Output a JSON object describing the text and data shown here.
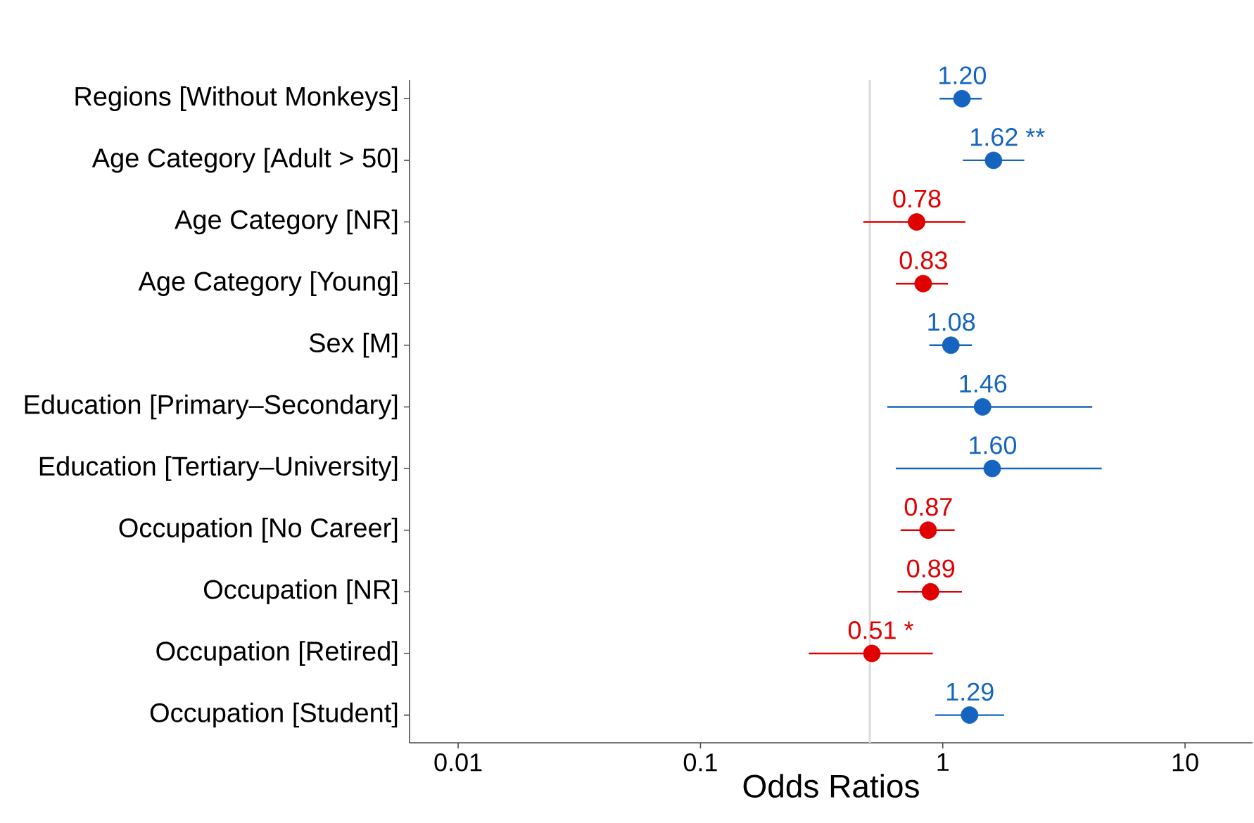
{
  "chart_data": {
    "type": "scatter",
    "orientation": "horizontal",
    "xlabel": "Odds Ratios",
    "log": "x",
    "marker": "circle",
    "xlim": [
      0.0063,
      19
    ],
    "xticks": [
      0.01,
      0.1,
      1,
      10
    ],
    "categories": [
      "Regions [Without Monkeys]",
      "Age Category [Adult > 50]",
      "Age Category [NR]",
      "Age Category [Young]",
      "Sex [M]",
      "Education [Primary–Secondary]",
      "Education [Tertiary–University]",
      "Occupation [No Career]",
      "Occupation [NR]",
      "Occupation [Retired]",
      "Occupation [Student]"
    ],
    "values": [
      1.2,
      1.62,
      0.78,
      0.83,
      1.08,
      1.46,
      1.6,
      0.87,
      0.89,
      0.51,
      1.29
    ],
    "value_labels": [
      "1.20",
      "1.62 **",
      "0.78",
      "0.83",
      "1.08",
      "1.46",
      "1.60",
      "0.87",
      "0.89",
      "0.51 *",
      "1.29"
    ],
    "errors": [
      [
        0.97,
        1.45
      ],
      [
        1.21,
        2.17
      ],
      [
        0.47,
        1.24
      ],
      [
        0.64,
        1.05
      ],
      [
        0.88,
        1.32
      ],
      [
        0.59,
        4.14
      ],
      [
        0.64,
        4.53
      ],
      [
        0.67,
        1.12
      ],
      [
        0.65,
        1.2
      ],
      [
        0.28,
        0.91
      ],
      [
        0.93,
        1.79
      ]
    ],
    "colors": [
      "#1565c0",
      "#1565c0",
      "#e00000",
      "#e00000",
      "#1565c0",
      "#1565c0",
      "#1565c0",
      "#e00000",
      "#e00000",
      "#e00000",
      "#1565c0"
    ],
    "ref_lines": [
      {
        "axis": "x",
        "value": 0.5,
        "color": "#d9d9d9"
      }
    ]
  }
}
